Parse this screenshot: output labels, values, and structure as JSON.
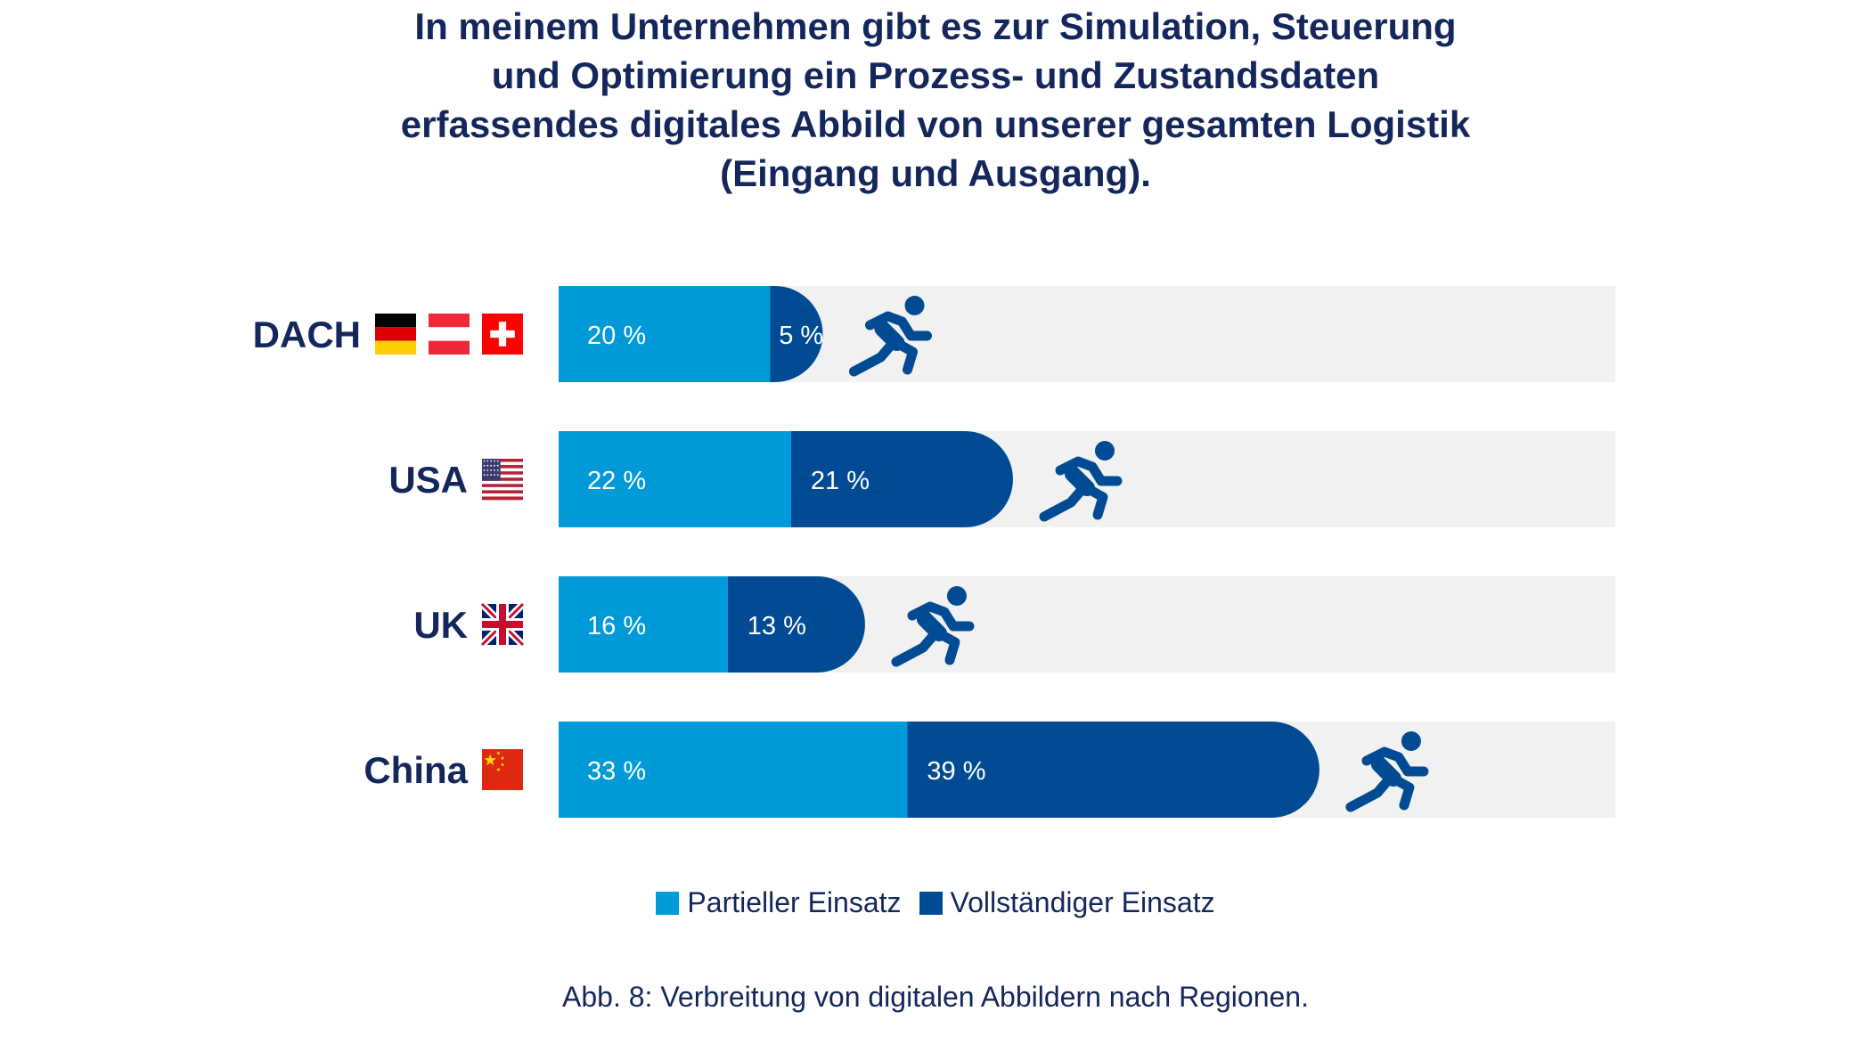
{
  "colors": {
    "partial": "#009ad9",
    "full": "#004b93",
    "track": "#f1f1f1",
    "text_dark": "#14275d",
    "runner": "#004b93"
  },
  "title_lines": [
    "In meinem Unternehmen gibt es zur Simulation, Steuerung",
    "und Optimierung ein Prozess- und Zustandsdaten",
    "erfassendes digitales Abbild von unserer gesamten Logistik",
    "(Eingang und Ausgang)."
  ],
  "caption": "Abb. 8: Verbreitung von digitalen Abbildern nach Regionen.",
  "chart_data": {
    "type": "bar",
    "orientation": "horizontal",
    "stacked": true,
    "categories": [
      "DACH",
      "USA",
      "UK",
      "China"
    ],
    "category_flags": [
      [
        "flag-germany-icon",
        "flag-austria-icon",
        "flag-switzerland-icon"
      ],
      [
        "flag-usa-icon"
      ],
      [
        "flag-uk-icon"
      ],
      [
        "flag-china-icon"
      ]
    ],
    "series": [
      {
        "name": "Partieller Einsatz",
        "values": [
          20,
          22,
          16,
          33
        ],
        "labels": [
          "20 %",
          "22 %",
          "16 %",
          "33 %"
        ]
      },
      {
        "name": "Vollständiger Einsatz",
        "values": [
          5,
          21,
          13,
          39
        ],
        "labels": [
          "5 %",
          "21 %",
          "13 %",
          "39 %"
        ]
      }
    ],
    "xlim": [
      0,
      100
    ],
    "unit": "%",
    "grid": false,
    "legend_position": "bottom-center",
    "marker_icon": "runner-icon"
  }
}
